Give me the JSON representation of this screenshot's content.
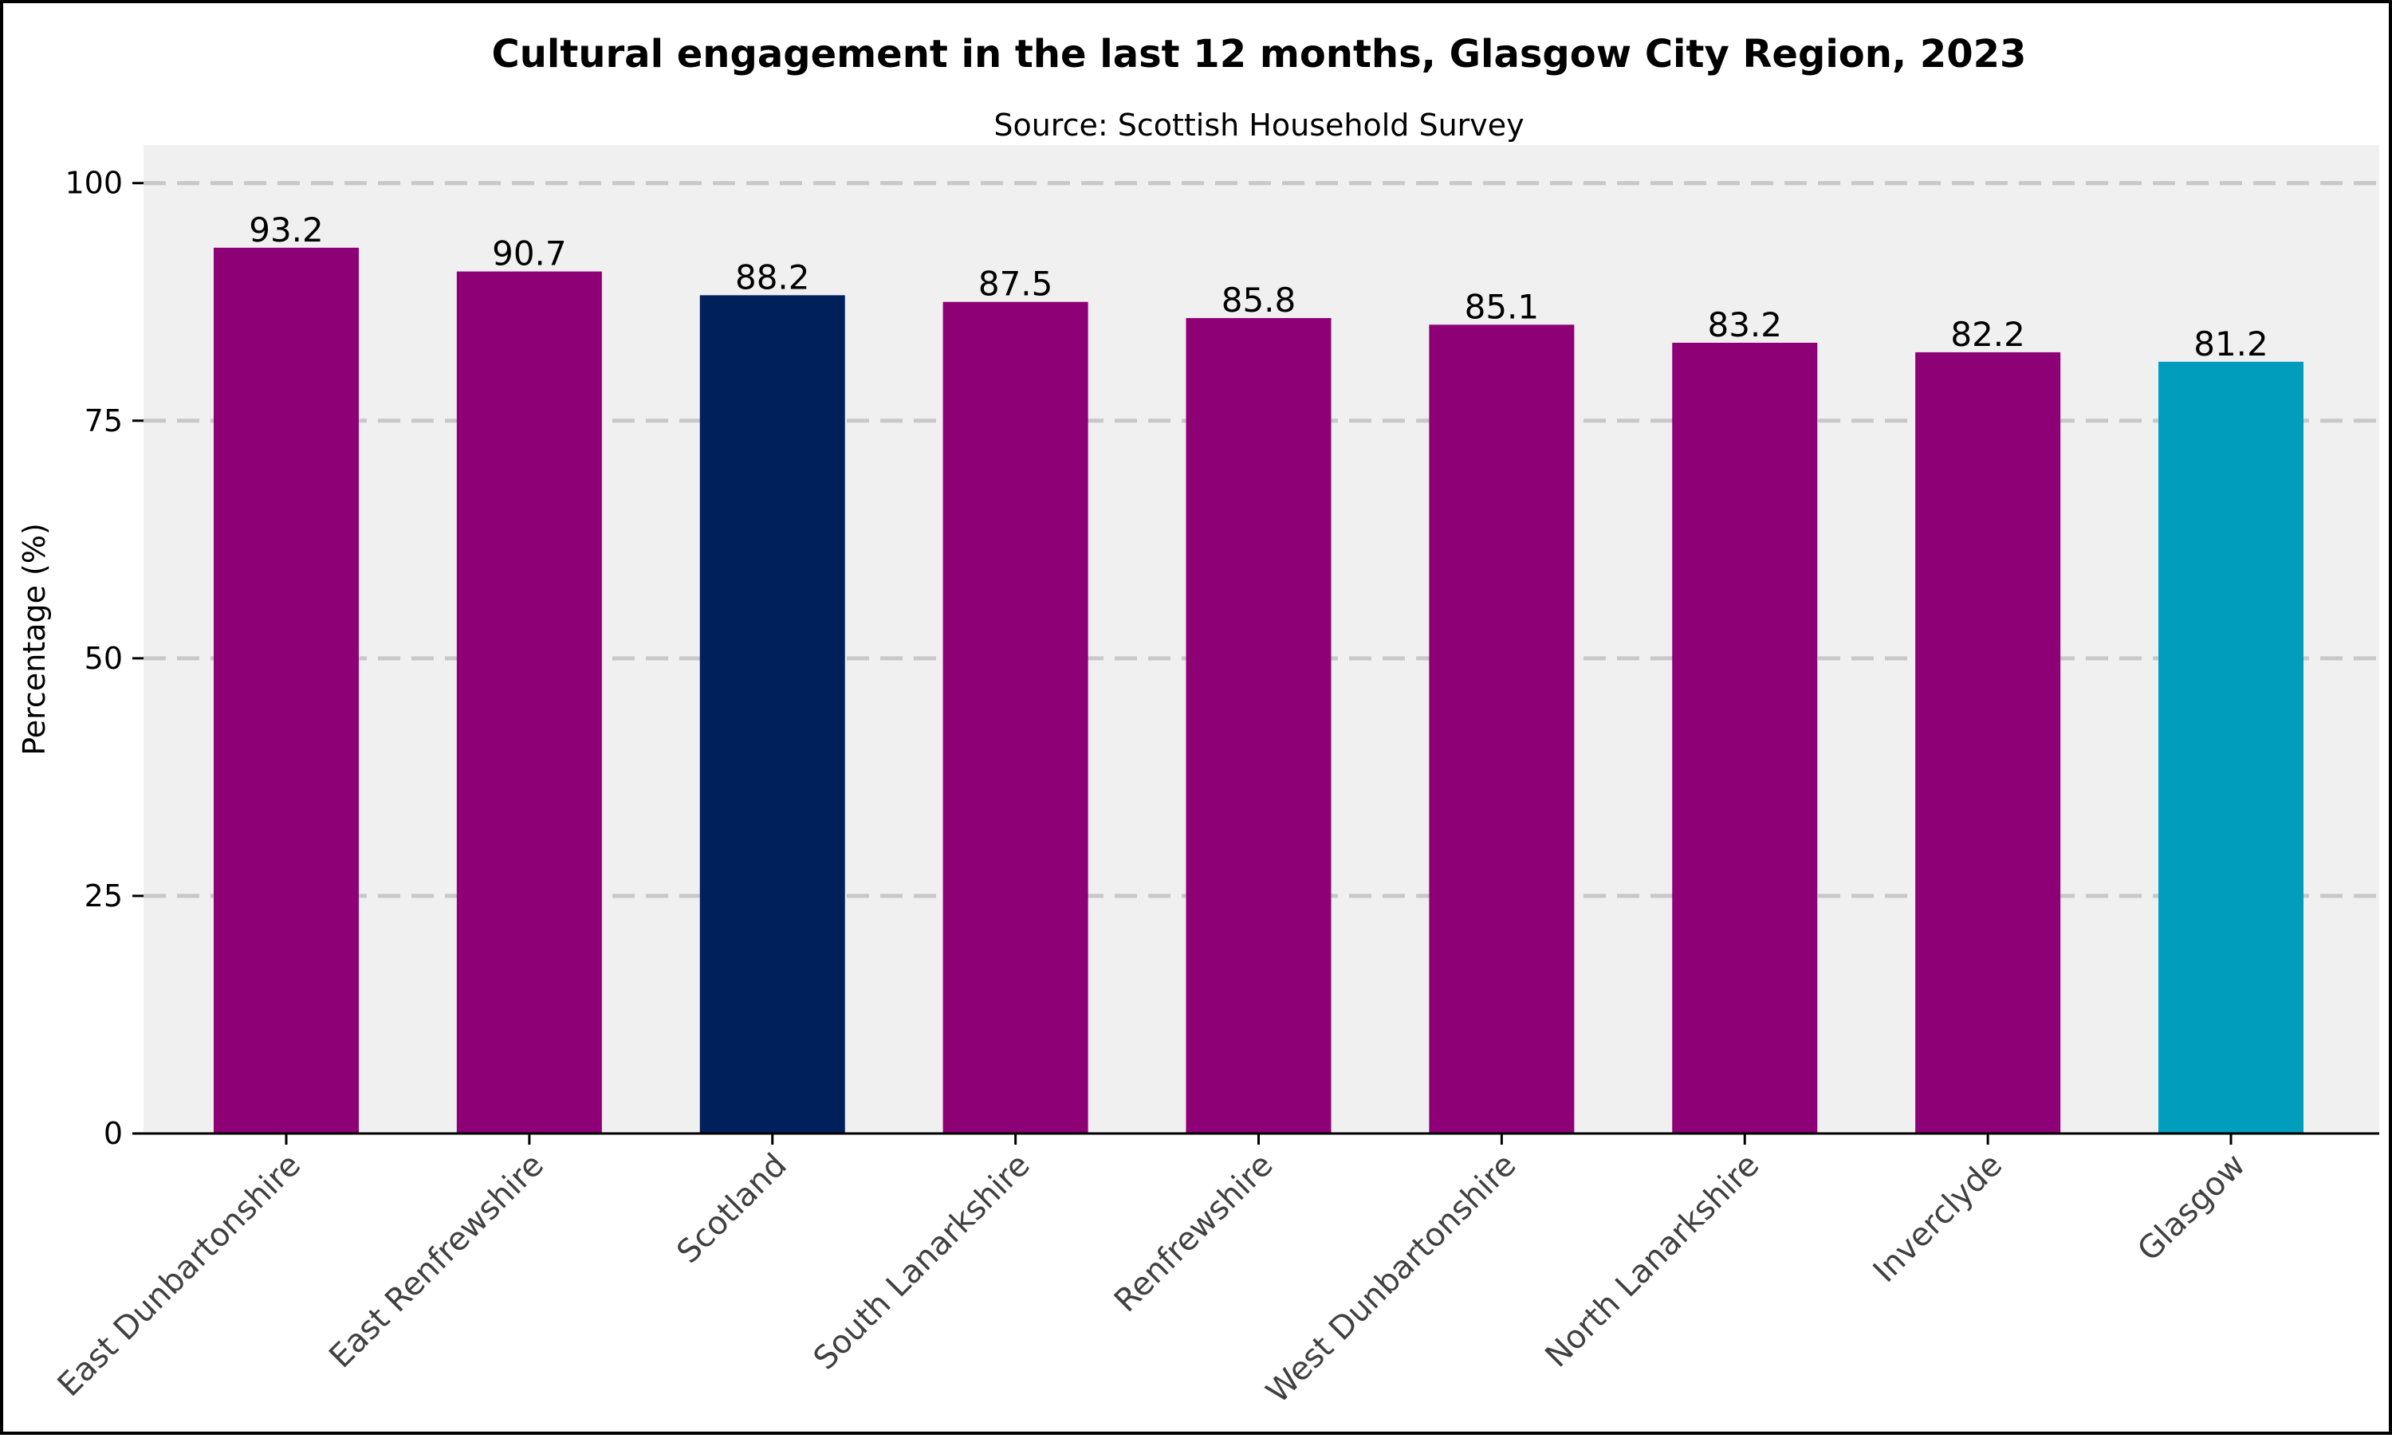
{
  "chart_data": {
    "type": "bar",
    "title": "Cultural engagement in the last 12 months, Glasgow City Region, 2023",
    "subtitle": "Source: Scottish Household Survey",
    "xlabel": "",
    "ylabel": "Percentage (%)",
    "ylim": [
      0,
      104
    ],
    "yticks": [
      0,
      25,
      50,
      75,
      100
    ],
    "grid": "horizontal dashed",
    "categories": [
      "East Dunbartonshire",
      "East Renfrewshire",
      "Scotland",
      "South Lanarkshire",
      "Renfrewshire",
      "West Dunbartonshire",
      "North Lanarkshire",
      "Inverclyde",
      "Glasgow"
    ],
    "values": [
      93.2,
      90.7,
      88.2,
      87.5,
      85.8,
      85.1,
      83.2,
      82.2,
      81.2
    ],
    "data_labels": [
      "93.2",
      "90.7",
      "88.2",
      "87.5",
      "85.8",
      "85.1",
      "83.2",
      "82.2",
      "81.2"
    ],
    "bar_colors": [
      "#8e0076",
      "#8e0076",
      "#00205b",
      "#8e0076",
      "#8e0076",
      "#8e0076",
      "#8e0076",
      "#8e0076",
      "#009dbd"
    ]
  },
  "colors": {
    "plot_background": "#f0f0f0",
    "gridline": "#c8c8c8",
    "axis": "#000000"
  }
}
